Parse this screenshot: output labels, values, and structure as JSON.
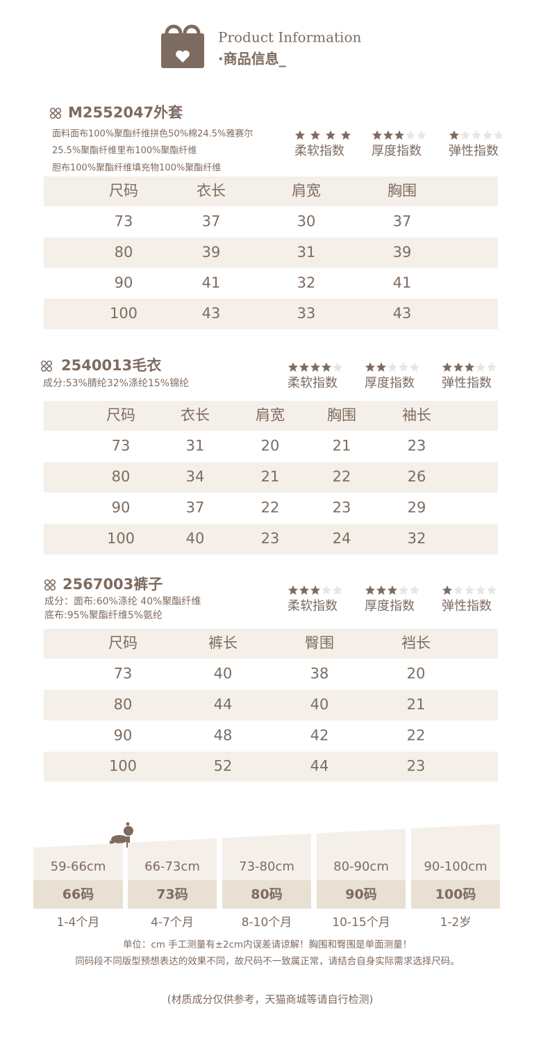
{
  "header": {
    "title_en": "Product Information",
    "title_cn": "·商品信息_"
  },
  "products": [
    {
      "title": "M2552047外套",
      "composition": [
        "面料面布100%聚酯纤维拼色50%棉24.5%雅赛尔",
        "25.5%聚酯纤维里布100%聚酯纤维",
        "胆布100%聚酯纤维填充物100%聚酯纤维"
      ],
      "ratings": [
        {
          "label": "柔软指数",
          "stars": 4,
          "max": 4
        },
        {
          "label": "厚度指数",
          "stars": 3,
          "max": 5
        },
        {
          "label": "弹性指数",
          "stars": 1,
          "max": 5
        }
      ],
      "table": {
        "header": [
          "尺码",
          "衣长",
          "肩宽",
          "胸围"
        ],
        "rows": [
          [
            73,
            37,
            30,
            37
          ],
          [
            80,
            39,
            31,
            39
          ],
          [
            90,
            41,
            32,
            41
          ],
          [
            100,
            43,
            33,
            43
          ]
        ]
      }
    },
    {
      "title": "2540013毛衣",
      "composition": [
        "成分:53%腈纶32%涤纶15%锦纶"
      ],
      "ratings": [
        {
          "label": "柔软指数",
          "stars": 4,
          "max": 5
        },
        {
          "label": "厚度指数",
          "stars": 2,
          "max": 5
        },
        {
          "label": "弹性指数",
          "stars": 3,
          "max": 5
        }
      ],
      "table": {
        "header": [
          "尺码",
          "衣长",
          "肩宽",
          "胸围",
          "袖长"
        ],
        "rows": [
          [
            73,
            31,
            20,
            21,
            23
          ],
          [
            80,
            34,
            21,
            22,
            26
          ],
          [
            90,
            37,
            22,
            23,
            29
          ],
          [
            100,
            40,
            23,
            24,
            32
          ]
        ]
      }
    },
    {
      "title": "2567003裤子",
      "composition": [
        "成分：面布:60%涤纶 40%聚酯纤维",
        "底布:95%聚酯纤维5%氨纶"
      ],
      "ratings": [
        {
          "label": "柔软指数",
          "stars": 3,
          "max": 5
        },
        {
          "label": "厚度指数",
          "stars": 3,
          "max": 5
        },
        {
          "label": "弹性指数",
          "stars": 1,
          "max": 5
        }
      ],
      "table": {
        "header": [
          "尺码",
          "裤长",
          "臀围",
          "裆长"
        ],
        "rows": [
          [
            73,
            40,
            38,
            20
          ],
          [
            80,
            44,
            40,
            21
          ],
          [
            90,
            48,
            42,
            22
          ],
          [
            100,
            52,
            44,
            23
          ]
        ]
      }
    }
  ],
  "size_chart": [
    {
      "range": "59-66cm",
      "code": "66码",
      "age": "1-4个月"
    },
    {
      "range": "66-73cm",
      "code": "73码",
      "age": "4-7个月"
    },
    {
      "range": "73-80cm",
      "code": "80码",
      "age": "8-10个月"
    },
    {
      "range": "80-90cm",
      "code": "90码",
      "age": "10-15个月"
    },
    {
      "range": "90-100cm",
      "code": "100码",
      "age": "1-2岁"
    }
  ],
  "notes": [
    "单位：cm 手工测量有±2cm内误差请谅解！胸围和臀围是单面测量！",
    "同码段不同版型预想表达的效果不同，故尺码不一致属正常，请结合自身实际需求选择尺码。"
  ],
  "disclaimer": "(材质成分仅供参考，天猫商城等请自行检测)"
}
